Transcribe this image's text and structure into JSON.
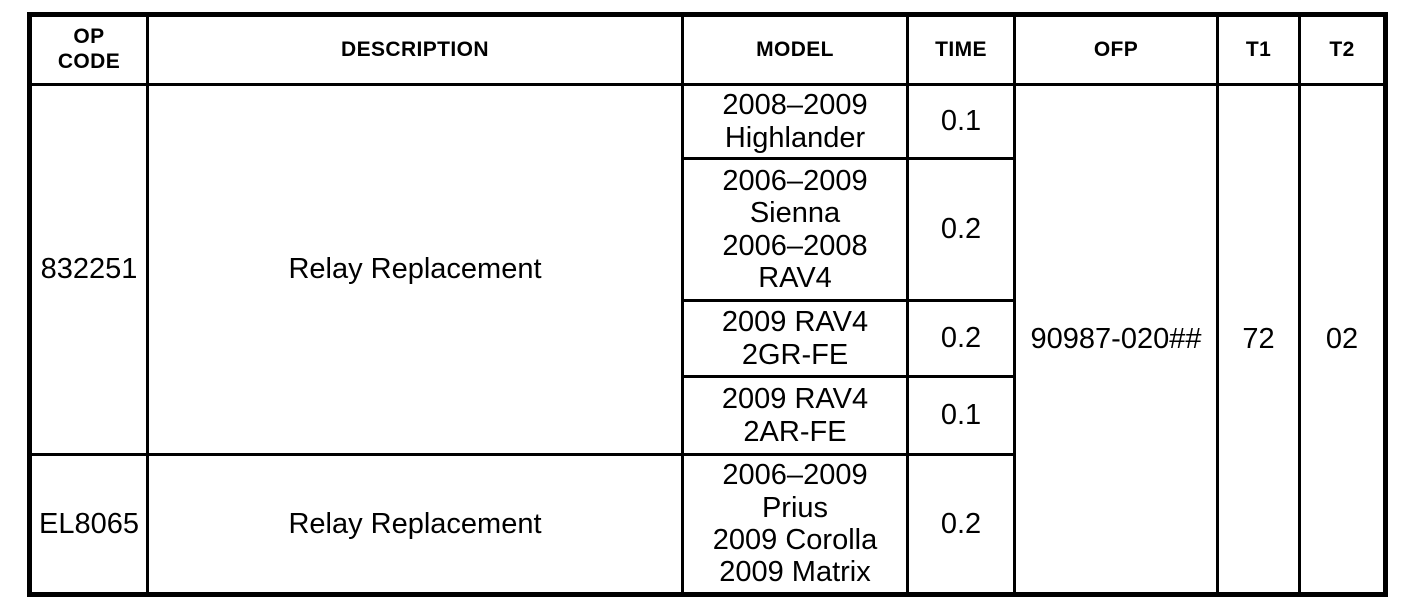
{
  "page": {
    "background_color": "#ffffff",
    "border_color": "#000000",
    "text_color": "#000000"
  },
  "table": {
    "headers": [
      "OP\nCODE",
      "DESCRIPTION",
      "MODEL",
      "TIME",
      "OFP",
      "T1",
      "T2"
    ],
    "groups": [
      {
        "op_code": "832251",
        "description": "Relay Replacement",
        "rows": [
          {
            "model": "2008–2009\nHighlander",
            "time": "0.1"
          },
          {
            "model": "2006–2009\nSienna\n2006–2008\nRAV4",
            "time": "0.2"
          },
          {
            "model": "2009 RAV4\n2GR-FE",
            "time": "0.2"
          },
          {
            "model": "2009 RAV4\n2AR-FE",
            "time": "0.1"
          }
        ]
      },
      {
        "op_code": "EL8065",
        "description": "Relay Replacement",
        "rows": [
          {
            "model": "2006–2009\nPrius\n2009 Corolla\n2009 Matrix",
            "time": "0.2"
          }
        ]
      }
    ],
    "ofp": "90987-020##",
    "t1": "72",
    "t2": "02"
  }
}
